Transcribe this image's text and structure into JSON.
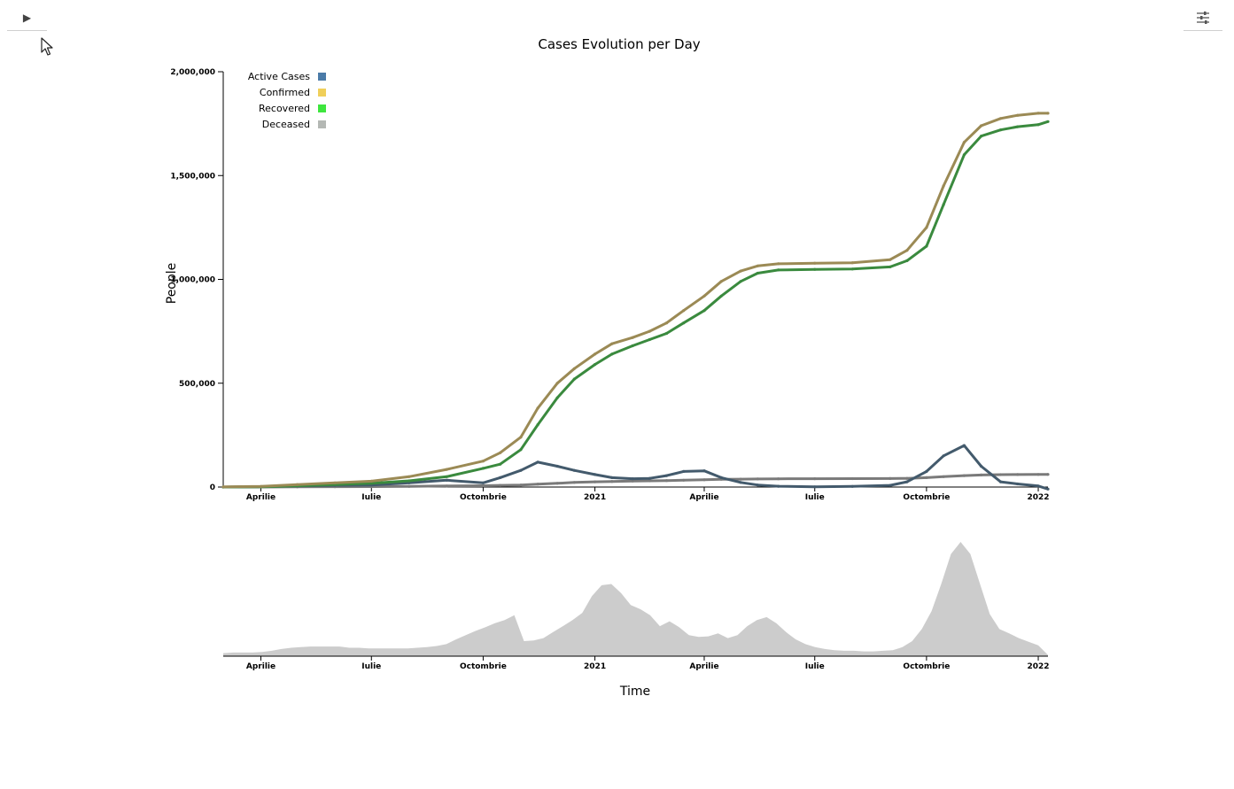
{
  "controls": {
    "play_icon": "play-icon",
    "play_glyph": "▶",
    "settings_icon": "sliders-icon"
  },
  "chart_data": {
    "type": "line",
    "title": "Cases Evolution per Day",
    "ylabel": "People",
    "xlabel": "Time",
    "x_range": [
      "2020-03-01",
      "2022-01-09"
    ],
    "ylim": [
      0,
      2000000
    ],
    "y_ticks": [
      {
        "value": 0,
        "label": "0"
      },
      {
        "value": 500000,
        "label": "500,000"
      },
      {
        "value": 1000000,
        "label": "1,000,000"
      },
      {
        "value": 1500000,
        "label": "1,500,000"
      },
      {
        "value": 2000000,
        "label": "2,000,000"
      }
    ],
    "x_ticks": [
      {
        "date": "2020-04-01",
        "label": "Aprilie"
      },
      {
        "date": "2020-07-01",
        "label": "Iulie"
      },
      {
        "date": "2020-10-01",
        "label": "Octombrie"
      },
      {
        "date": "2021-01-01",
        "label": "2021"
      },
      {
        "date": "2021-04-01",
        "label": "Aprilie"
      },
      {
        "date": "2021-07-01",
        "label": "Iulie"
      },
      {
        "date": "2021-10-01",
        "label": "Octombrie"
      },
      {
        "date": "2022-01-01",
        "label": "2022"
      }
    ],
    "legend": [
      {
        "name": "Active Cases",
        "color": "#4b7ba8"
      },
      {
        "name": "Confirmed",
        "color": "#f0cf5a"
      },
      {
        "name": "Recovered",
        "color": "#3ee63e"
      },
      {
        "name": "Deceased",
        "color": "#b4b8b4"
      }
    ],
    "legend_position": "top-left",
    "line_colors": {
      "Active Cases": "#435a6c",
      "Confirmed": "#9b8a55",
      "Recovered": "#3a8a3e",
      "Deceased": "#7a7a7a"
    },
    "x": [
      "2020-03-01",
      "2020-04-01",
      "2020-05-01",
      "2020-06-01",
      "2020-07-01",
      "2020-08-01",
      "2020-09-01",
      "2020-10-01",
      "2020-10-15",
      "2020-11-01",
      "2020-11-15",
      "2020-12-01",
      "2020-12-15",
      "2021-01-01",
      "2021-01-15",
      "2021-02-01",
      "2021-02-15",
      "2021-03-01",
      "2021-03-15",
      "2021-04-01",
      "2021-04-15",
      "2021-05-01",
      "2021-05-15",
      "2021-06-01",
      "2021-07-01",
      "2021-08-01",
      "2021-09-01",
      "2021-09-15",
      "2021-10-01",
      "2021-10-15",
      "2021-11-01",
      "2021-11-15",
      "2021-12-01",
      "2021-12-15",
      "2022-01-01",
      "2022-01-09"
    ],
    "series": [
      {
        "name": "Confirmed",
        "values": [
          1000,
          3000,
          12000,
          20000,
          28000,
          50000,
          85000,
          125000,
          165000,
          240000,
          380000,
          500000,
          570000,
          640000,
          690000,
          720000,
          750000,
          790000,
          850000,
          920000,
          990000,
          1040000,
          1065000,
          1075000,
          1078000,
          1080000,
          1095000,
          1140000,
          1250000,
          1450000,
          1660000,
          1740000,
          1775000,
          1790000,
          1800000,
          1800000
        ]
      },
      {
        "name": "Recovered",
        "values": [
          0,
          1000,
          6000,
          12000,
          18000,
          30000,
          50000,
          90000,
          110000,
          180000,
          300000,
          430000,
          520000,
          590000,
          640000,
          680000,
          710000,
          740000,
          790000,
          850000,
          920000,
          990000,
          1030000,
          1045000,
          1048000,
          1050000,
          1060000,
          1090000,
          1160000,
          1360000,
          1600000,
          1690000,
          1720000,
          1735000,
          1745000,
          1760000
        ]
      },
      {
        "name": "Active Cases",
        "values": [
          0,
          2000,
          5000,
          8000,
          10000,
          20000,
          33000,
          20000,
          45000,
          80000,
          120000,
          100000,
          80000,
          60000,
          45000,
          40000,
          42000,
          55000,
          75000,
          78000,
          45000,
          22000,
          10000,
          4000,
          1000,
          3000,
          8000,
          25000,
          75000,
          150000,
          200000,
          100000,
          25000,
          15000,
          5000,
          -10000
        ]
      },
      {
        "name": "Deceased",
        "values": [
          0,
          200,
          1000,
          1500,
          2000,
          3000,
          5000,
          6500,
          8000,
          10000,
          14000,
          18000,
          22000,
          25000,
          27000,
          29000,
          30000,
          31000,
          33000,
          35000,
          37000,
          38000,
          39000,
          39500,
          40000,
          40500,
          41000,
          42000,
          45000,
          50000,
          55000,
          58000,
          59500,
          60000,
          60500,
          61000
        ]
      }
    ],
    "overview": {
      "type": "area",
      "series": "Active Cases",
      "x_range": [
        "2020-03-01",
        "2022-01-09"
      ],
      "values": [
        5,
        6,
        6,
        6,
        7,
        9,
        12,
        14,
        15,
        16,
        16,
        16,
        16,
        14,
        14,
        13,
        13,
        13,
        13,
        13,
        14,
        15,
        17,
        20,
        28,
        35,
        42,
        48,
        55,
        60,
        68,
        25,
        26,
        30,
        40,
        50,
        60,
        72,
        100,
        118,
        120,
        105,
        85,
        78,
        68,
        50,
        58,
        48,
        35,
        32,
        33,
        38,
        30,
        35,
        50,
        60,
        65,
        55,
        40,
        28,
        20,
        15,
        12,
        10,
        9,
        9,
        8,
        8,
        9,
        10,
        15,
        25,
        45,
        75,
        120,
        170,
        190,
        170,
        120,
        70,
        45,
        38,
        30,
        24,
        18,
        2
      ]
    }
  }
}
